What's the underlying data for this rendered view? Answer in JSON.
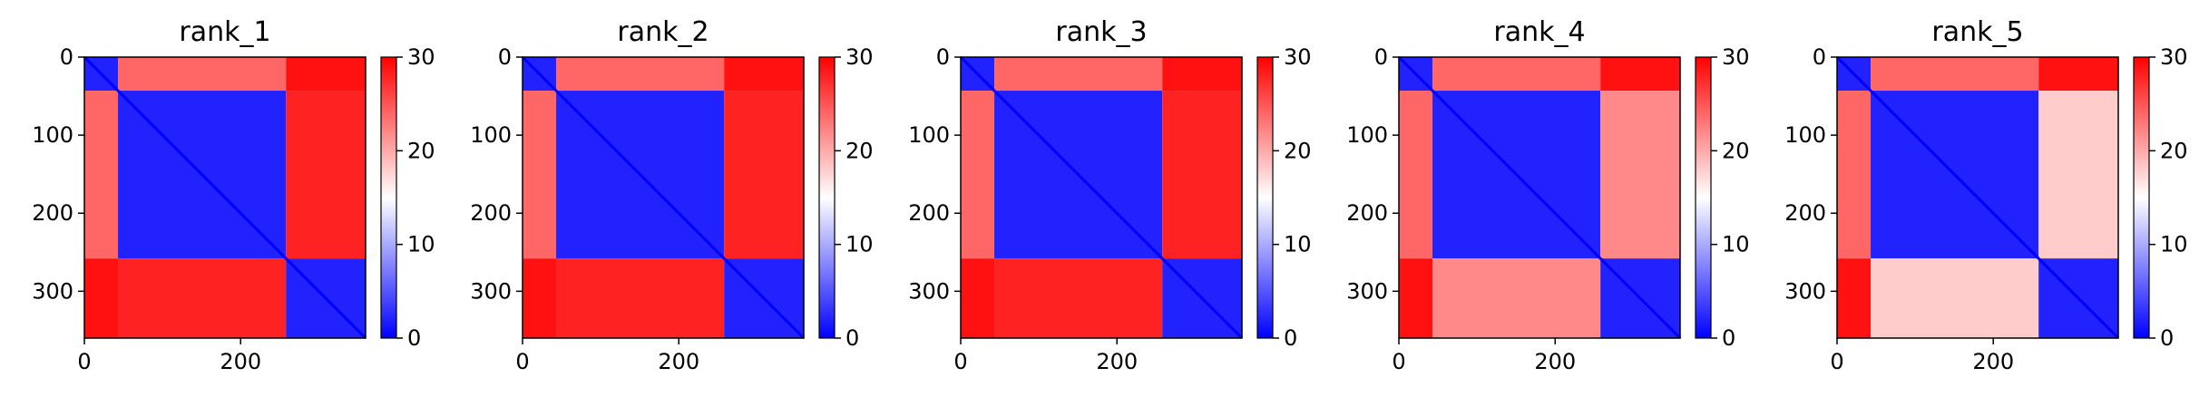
{
  "chart_data": [
    {
      "type": "heatmap",
      "title": "rank_1",
      "x_ticks": [
        "0",
        "200"
      ],
      "y_ticks": [
        "0",
        "100",
        "200",
        "300"
      ],
      "xlim": [
        0,
        360
      ],
      "ylim": [
        0,
        360
      ],
      "colorbar": {
        "ticks": [
          "0",
          "10",
          "20",
          "30"
        ],
        "range": [
          0,
          30
        ],
        "colormap": "bwr"
      },
      "domains": [
        0,
        43,
        258,
        360
      ],
      "interdomain_distance_AB": [
        24,
        24
      ],
      "interdomain_distance_BC": [
        28,
        28
      ]
    },
    {
      "type": "heatmap",
      "title": "rank_2",
      "x_ticks": [
        "0",
        "200"
      ],
      "y_ticks": [
        "0",
        "100",
        "200",
        "300"
      ],
      "xlim": [
        0,
        360
      ],
      "ylim": [
        0,
        360
      ],
      "colorbar": {
        "ticks": [
          "0",
          "10",
          "20",
          "30"
        ],
        "range": [
          0,
          30
        ],
        "colormap": "bwr"
      },
      "domains": [
        0,
        43,
        258,
        360
      ],
      "interdomain_distance_AB": [
        24,
        24
      ],
      "interdomain_distance_BC": [
        28,
        28
      ]
    },
    {
      "type": "heatmap",
      "title": "rank_3",
      "x_ticks": [
        "0",
        "200"
      ],
      "y_ticks": [
        "0",
        "100",
        "200",
        "300"
      ],
      "xlim": [
        0,
        360
      ],
      "ylim": [
        0,
        360
      ],
      "colorbar": {
        "ticks": [
          "0",
          "10",
          "20",
          "30"
        ],
        "range": [
          0,
          30
        ],
        "colormap": "bwr"
      },
      "domains": [
        0,
        43,
        258,
        360
      ],
      "interdomain_distance_AB": [
        24,
        24
      ],
      "interdomain_distance_BC": [
        28,
        28
      ]
    },
    {
      "type": "heatmap",
      "title": "rank_4",
      "x_ticks": [
        "0",
        "200"
      ],
      "y_ticks": [
        "0",
        "100",
        "200",
        "300"
      ],
      "xlim": [
        0,
        360
      ],
      "ylim": [
        0,
        360
      ],
      "colorbar": {
        "ticks": [
          "0",
          "10",
          "20",
          "30"
        ],
        "range": [
          0,
          30
        ],
        "colormap": "bwr"
      },
      "domains": [
        0,
        43,
        258,
        360
      ],
      "interdomain_distance_AB": [
        24,
        24
      ],
      "interdomain_distance_BC": [
        22,
        22
      ]
    },
    {
      "type": "heatmap",
      "title": "rank_5",
      "x_ticks": [
        "0",
        "200"
      ],
      "y_ticks": [
        "0",
        "100",
        "200",
        "300"
      ],
      "xlim": [
        0,
        360
      ],
      "ylim": [
        0,
        360
      ],
      "colorbar": {
        "ticks": [
          "0",
          "10",
          "20",
          "30"
        ],
        "range": [
          0,
          30
        ],
        "colormap": "bwr"
      },
      "domains": [
        0,
        43,
        258,
        360
      ],
      "interdomain_distance_AB": [
        24,
        24
      ],
      "interdomain_distance_BC": [
        18,
        18
      ]
    }
  ]
}
